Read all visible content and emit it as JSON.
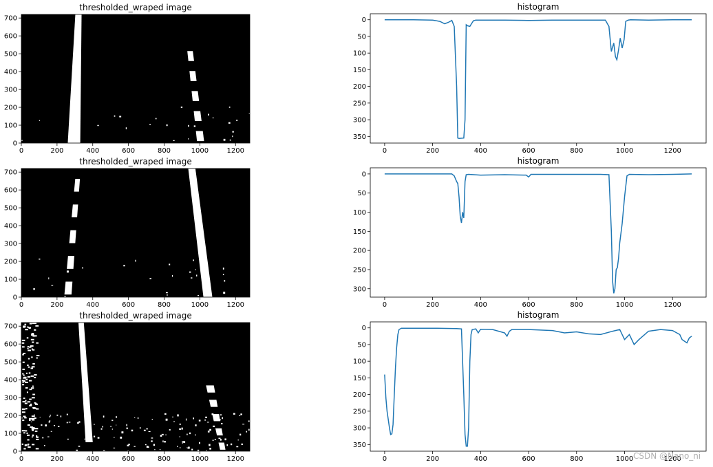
{
  "watermark": "CSDN @Nano_ni",
  "chart_data": [
    {
      "type": "image",
      "title": "thresholded_wraped image",
      "xlim": [
        0,
        1280
      ],
      "ylim": [
        720,
        0
      ],
      "xticks": [
        0,
        200,
        400,
        600,
        800,
        1000,
        1200
      ],
      "yticks": [
        0,
        100,
        200,
        300,
        400,
        500,
        600,
        700
      ],
      "lanes": [
        {
          "x_top": 295,
          "x_bottom": 320,
          "width_top": 70,
          "width_bottom": 35,
          "y_top": 0,
          "y_bottom": 720,
          "solid": true
        },
        {
          "x_top": 1005,
          "x_bottom": 940,
          "width_top": 40,
          "width_bottom": 30,
          "y_top": 0,
          "y_bottom": 560,
          "solid": false
        }
      ]
    },
    {
      "type": "line",
      "title": "histogram",
      "xlim": [
        -60,
        1340
      ],
      "ylim": [
        -18,
        370
      ],
      "xticks": [
        0,
        200,
        400,
        600,
        800,
        1000,
        1200
      ],
      "yticks": [
        0,
        50,
        100,
        150,
        200,
        250,
        300,
        350
      ],
      "series": [
        {
          "x": [
            0,
            60,
            120,
            200,
            230,
            250,
            265,
            280,
            290,
            300,
            305,
            310,
            330,
            335,
            340,
            345,
            355,
            362,
            370,
            380,
            400,
            500,
            600,
            700,
            800,
            920,
            935,
            945,
            955,
            962,
            968,
            975,
            982,
            990,
            998,
            1005,
            1015,
            1025,
            1100,
            1200,
            1280
          ],
          "y": [
            0,
            0,
            0,
            1,
            5,
            12,
            8,
            2,
            20,
            200,
            355,
            356,
            355,
            300,
            15,
            18,
            20,
            12,
            3,
            1,
            1,
            1,
            2,
            1,
            1,
            1,
            20,
            95,
            70,
            110,
            120,
            90,
            55,
            85,
            60,
            5,
            1,
            0,
            1,
            0,
            0
          ]
        }
      ]
    },
    {
      "type": "image",
      "title": "thresholded_wraped image",
      "xlim": [
        0,
        1280
      ],
      "ylim": [
        720,
        0
      ],
      "xticks": [
        0,
        200,
        400,
        600,
        800,
        1000,
        1200
      ],
      "yticks": [
        0,
        100,
        200,
        300,
        400,
        500,
        600,
        700
      ],
      "lanes": [
        {
          "x_top": 260,
          "x_bottom": 320,
          "width_top": 40,
          "width_bottom": 25,
          "y_top": 0,
          "y_bottom": 720,
          "solid": false
        },
        {
          "x_top": 1045,
          "x_bottom": 955,
          "width_top": 50,
          "width_bottom": 40,
          "y_top": 0,
          "y_bottom": 720,
          "solid": true
        }
      ]
    },
    {
      "type": "line",
      "title": "histogram",
      "xlim": [
        -60,
        1340
      ],
      "ylim": [
        -16,
        322
      ],
      "xticks": [
        0,
        200,
        400,
        600,
        800,
        1000,
        1200
      ],
      "yticks": [
        0,
        50,
        100,
        150,
        200,
        250,
        300
      ],
      "series": [
        {
          "x": [
            0,
            100,
            200,
            280,
            290,
            300,
            305,
            310,
            315,
            320,
            325,
            330,
            335,
            340,
            350,
            400,
            500,
            590,
            600,
            610,
            700,
            800,
            900,
            935,
            945,
            950,
            955,
            960,
            965,
            970,
            975,
            980,
            990,
            1000,
            1010,
            1020,
            1100,
            1200,
            1280
          ],
          "y": [
            0,
            0,
            0,
            0,
            5,
            20,
            25,
            60,
            110,
            128,
            100,
            115,
            20,
            2,
            1,
            3,
            2,
            3,
            8,
            1,
            1,
            1,
            1,
            2,
            150,
            280,
            312,
            300,
            250,
            245,
            220,
            180,
            130,
            60,
            5,
            1,
            2,
            1,
            0
          ]
        }
      ]
    },
    {
      "type": "image",
      "title": "thresholded_wraped image",
      "xlim": [
        0,
        1280
      ],
      "ylim": [
        720,
        0
      ],
      "xticks": [
        0,
        200,
        400,
        600,
        800,
        1000,
        1200
      ],
      "yticks": [
        0,
        100,
        200,
        300,
        400,
        500,
        600,
        700
      ],
      "lanes": [
        {
          "x_top": 380,
          "x_bottom": 335,
          "width_top": 40,
          "width_bottom": 30,
          "y_top": 50,
          "y_bottom": 720,
          "solid": true
        },
        {
          "x_top": 1130,
          "x_bottom": 1050,
          "width_top": 30,
          "width_bottom": 45,
          "y_top": 0,
          "y_bottom": 400,
          "solid": false
        }
      ]
    },
    {
      "type": "line",
      "title": "histogram",
      "xlim": [
        -60,
        1340
      ],
      "ylim": [
        -18,
        370
      ],
      "xticks": [
        0,
        200,
        400,
        600,
        800,
        1000,
        1200
      ],
      "yticks": [
        0,
        50,
        100,
        150,
        200,
        250,
        300,
        350
      ],
      "series": [
        {
          "x": [
            0,
            5,
            10,
            20,
            25,
            30,
            35,
            40,
            45,
            50,
            55,
            60,
            70,
            100,
            200,
            300,
            320,
            330,
            335,
            340,
            345,
            350,
            355,
            360,
            365,
            380,
            390,
            400,
            450,
            500,
            510,
            520,
            530,
            600,
            700,
            750,
            800,
            850,
            900,
            950,
            980,
            1000,
            1020,
            1040,
            1060,
            1100,
            1150,
            1200,
            1230,
            1240,
            1260,
            1270,
            1280
          ],
          "y": [
            140,
            210,
            250,
            300,
            320,
            318,
            290,
            200,
            120,
            60,
            20,
            5,
            1,
            1,
            1,
            2,
            3,
            200,
            320,
            355,
            355,
            300,
            100,
            20,
            5,
            3,
            15,
            4,
            5,
            15,
            25,
            10,
            5,
            5,
            8,
            15,
            12,
            18,
            20,
            10,
            5,
            35,
            20,
            50,
            35,
            10,
            5,
            8,
            20,
            35,
            45,
            30,
            25
          ]
        }
      ]
    }
  ]
}
